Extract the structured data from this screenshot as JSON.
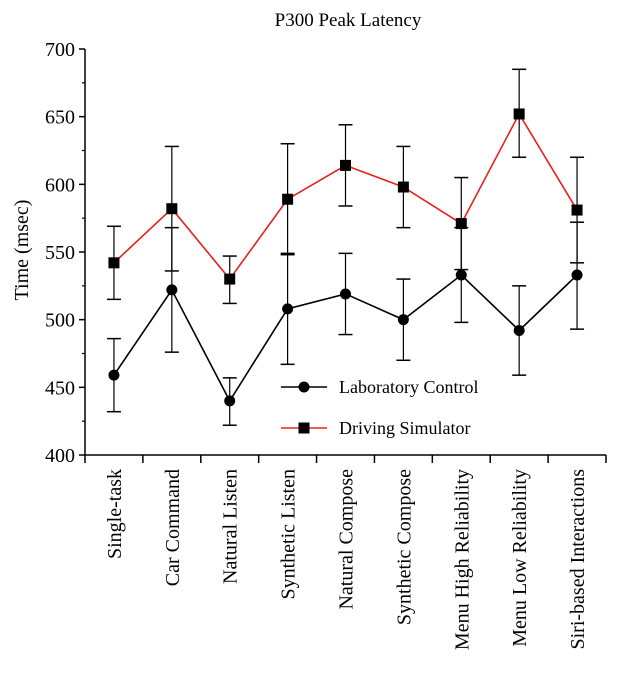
{
  "chart_data": {
    "type": "line",
    "title": "P300 Peak Latency",
    "xlabel": "",
    "ylabel": "Time (msec)",
    "ylim": [
      400,
      700
    ],
    "yticks": [
      "400",
      "450",
      "500",
      "550",
      "600",
      "650",
      "700"
    ],
    "categories": [
      "Single-task",
      "Car Command",
      "Natural Listen",
      "Synthetic Listen",
      "Natural Compose",
      "Synthetic Compose",
      "Menu High Reliability",
      "Menu Low Reliability",
      "Siri-based Interactions"
    ],
    "legend_position": "inside-bottom-center",
    "series": [
      {
        "name": "Laboratory Control",
        "color": "#000000",
        "marker": "circle",
        "values": [
          459,
          522,
          440,
          508,
          519,
          500,
          533,
          492,
          533
        ],
        "err_low": [
          432,
          476,
          422,
          467,
          489,
          470,
          498,
          459,
          493
        ],
        "err_high": [
          486,
          568,
          457,
          548,
          549,
          530,
          568,
          525,
          572
        ]
      },
      {
        "name": "Driving Simulator",
        "color": "#e8201c",
        "marker": "square",
        "values": [
          542,
          582,
          530,
          589,
          614,
          598,
          571,
          652,
          581
        ],
        "err_low": [
          515,
          536,
          512,
          549,
          584,
          568,
          537,
          620,
          542
        ],
        "err_high": [
          569,
          628,
          547,
          630,
          644,
          628,
          605,
          685,
          620
        ]
      }
    ]
  }
}
